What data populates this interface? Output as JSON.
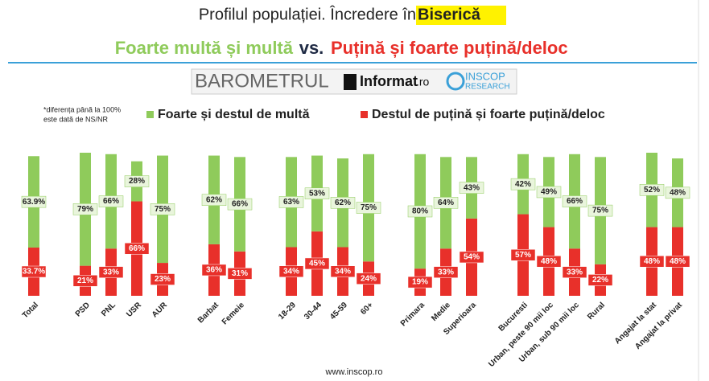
{
  "chart_data": {
    "type": "stacked_bar",
    "title": "Profilul populației. Încredere în ",
    "title_highlight": "Biserică",
    "subtitle": {
      "part1": "Foarte multă și multă",
      "part2": "vs.",
      "part3": "Puțină și foarte puțină/deloc"
    },
    "note": [
      "*diferența până la 100%",
      "este dată de NS/NR"
    ],
    "source": "www.inscop.ro",
    "categories": [
      "Total",
      null,
      "PSD",
      "PNL",
      "USR",
      "AUR",
      null,
      "Barbat",
      "Femeie",
      null,
      "18-29",
      "30-44",
      "45-59",
      "60+",
      null,
      "Primara",
      "Medie",
      "Superioara",
      null,
      "Bucuresti",
      "Urban, peste 90 mii loc",
      "Urban, sub 90 mii loc",
      "Rural",
      null,
      "Angajat la stat",
      "Angajat la privat"
    ],
    "series": [
      {
        "name": "Destul de puțină și foarte puțină/deloc",
        "color": "#e8302a",
        "values": [
          33.7,
          null,
          21,
          33,
          66,
          23,
          null,
          36,
          31,
          null,
          34,
          45,
          34,
          24,
          null,
          19,
          33,
          54,
          null,
          57,
          48,
          33,
          22,
          null,
          48,
          48
        ],
        "value_labels": [
          "33.7%",
          null,
          "21%",
          "33%",
          "66%",
          "23%",
          null,
          "36%",
          "31%",
          null,
          "34%",
          "45%",
          "34%",
          "24%",
          null,
          "19%",
          "33%",
          "54%",
          null,
          "57%",
          "48%",
          "33%",
          "22%",
          null,
          "48%",
          "48%"
        ]
      },
      {
        "name": "Foarte și destul de multă",
        "color": "#8fcb5b",
        "values": [
          63.9,
          null,
          79,
          66,
          28,
          75,
          null,
          62,
          66,
          null,
          63,
          53,
          62,
          75,
          null,
          80,
          64,
          43,
          null,
          42,
          49,
          66,
          75,
          null,
          52,
          48
        ],
        "value_labels": [
          "63.9%",
          null,
          "79%",
          "66%",
          "28%",
          "75%",
          null,
          "62%",
          "66%",
          null,
          "63%",
          "53%",
          "62%",
          "75%",
          null,
          "80%",
          "64%",
          "43%",
          null,
          "42%",
          "49%",
          "66%",
          "75%",
          null,
          "52%",
          "48%"
        ]
      }
    ]
  },
  "branding": {
    "barometer": "BAROMETRUL",
    "partner": "Informat",
    "partner_suffix": ".ro",
    "inscop": "INSCOP",
    "research": "RESEARCH"
  }
}
